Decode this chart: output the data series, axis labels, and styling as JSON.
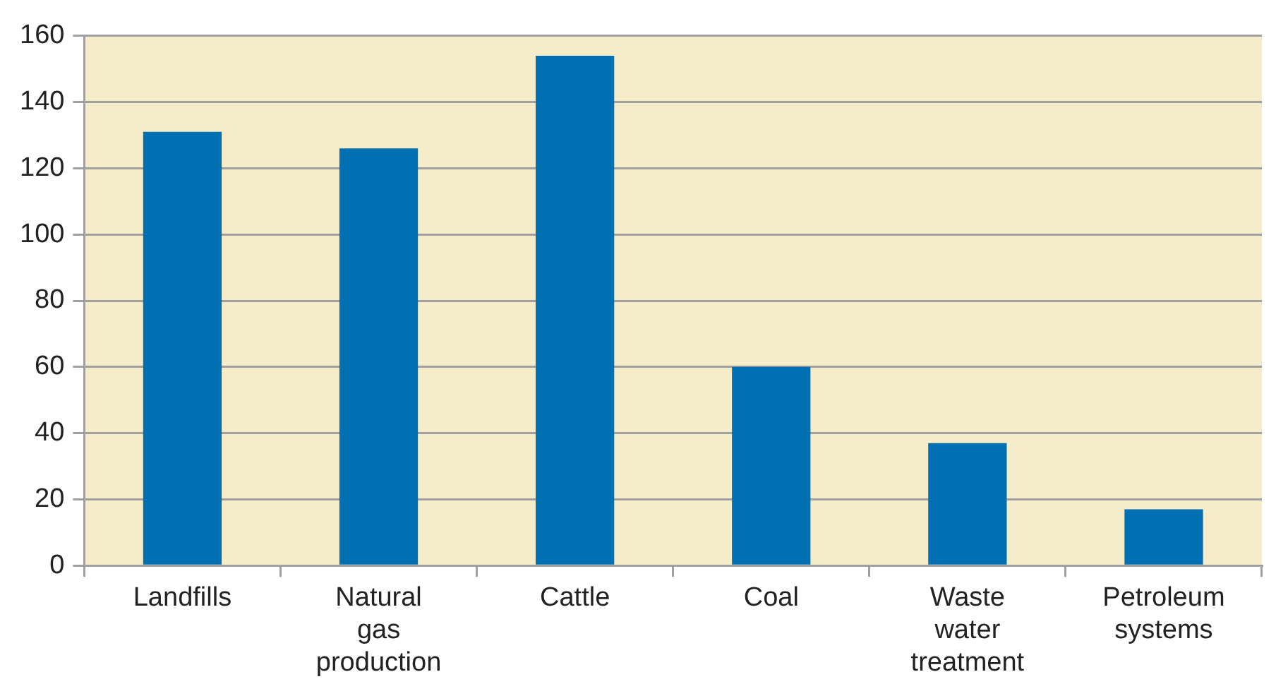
{
  "chart_data": {
    "type": "bar",
    "categories": [
      "Landfills",
      "Natural gas production",
      "Cattle",
      "Coal",
      "Waste water treatment",
      "Petroleum systems"
    ],
    "values": [
      131,
      126,
      154,
      60,
      37,
      17
    ],
    "color": "#0070b3",
    "ylim": [
      0,
      160
    ],
    "yticks": [
      0,
      20,
      40,
      60,
      80,
      100,
      120,
      140,
      160
    ],
    "grid": "y",
    "legend": false
  }
}
